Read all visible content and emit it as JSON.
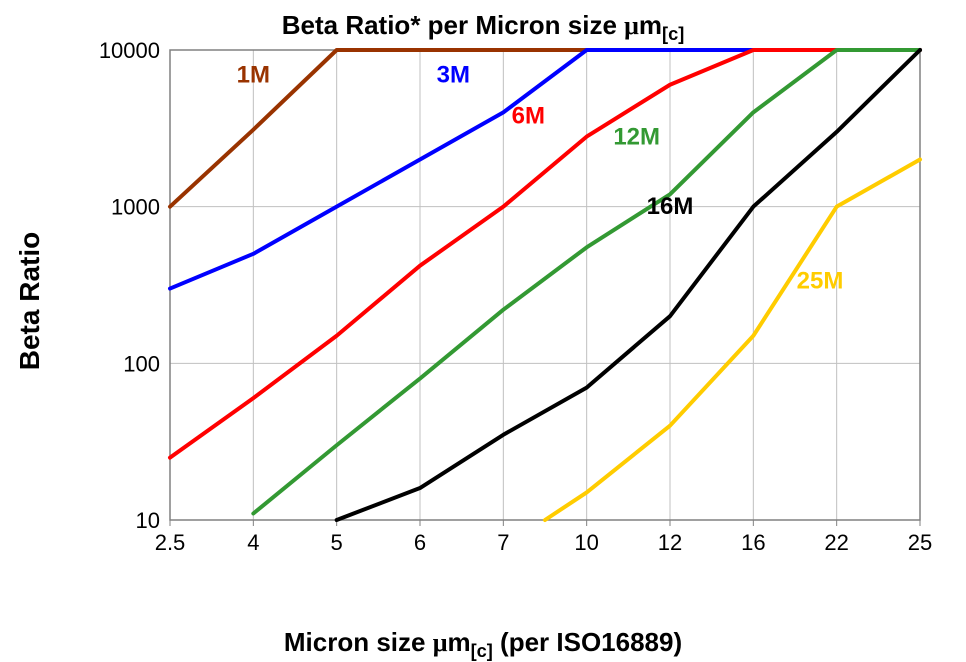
{
  "chart": {
    "type": "line",
    "title_prefix": "Beta Ratio* per Micron size ",
    "title_unit_prefix": "m",
    "title_subscript": "[c]",
    "title_fontsize": 26,
    "ylabel": "Beta Ratio",
    "ylabel_fontsize": 28,
    "xlabel_prefix": "Micron size ",
    "xlabel_unit_prefix": "m",
    "xlabel_subscript": "[c]",
    "xlabel_suffix": " (per ISO16889)",
    "xlabel_fontsize": 26,
    "background_color": "#ffffff",
    "grid_color": "#c0c0c0",
    "axis_color": "#808080",
    "tick_fontsize": 22,
    "tick_color": "#000000",
    "x_categories": [
      "2.5",
      "4",
      "5",
      "6",
      "7",
      "10",
      "12",
      "16",
      "22",
      "25"
    ],
    "y_scale": "log",
    "y_min": 10,
    "y_max": 10000,
    "y_ticks": [
      10,
      100,
      1000,
      10000
    ],
    "y_tick_labels": [
      "10",
      "100",
      "1000",
      "10000"
    ],
    "line_width": 4,
    "series": [
      {
        "name": "1M",
        "color": "#993300",
        "label_x": 1.0,
        "label_y": 6200,
        "label_fontsize": 24,
        "points": [
          {
            "xi": 0,
            "y": 1000
          },
          {
            "xi": 1,
            "y": 3100
          },
          {
            "xi": 2,
            "y": 10000
          },
          {
            "xi": 9,
            "y": 10000
          }
        ]
      },
      {
        "name": "3M",
        "color": "#0000ff",
        "label_x": 3.4,
        "label_y": 6200,
        "label_fontsize": 24,
        "points": [
          {
            "xi": 0,
            "y": 300
          },
          {
            "xi": 1,
            "y": 500
          },
          {
            "xi": 2,
            "y": 1000
          },
          {
            "xi": 3,
            "y": 2000
          },
          {
            "xi": 4,
            "y": 4000
          },
          {
            "xi": 5,
            "y": 10000
          },
          {
            "xi": 9,
            "y": 10000
          }
        ]
      },
      {
        "name": "6M",
        "color": "#ff0000",
        "label_x": 4.3,
        "label_y": 3400,
        "label_fontsize": 24,
        "points": [
          {
            "xi": 0,
            "y": 25
          },
          {
            "xi": 1,
            "y": 60
          },
          {
            "xi": 2,
            "y": 150
          },
          {
            "xi": 3,
            "y": 420
          },
          {
            "xi": 4,
            "y": 1000
          },
          {
            "xi": 5,
            "y": 2800
          },
          {
            "xi": 6,
            "y": 6000
          },
          {
            "xi": 7,
            "y": 10000
          },
          {
            "xi": 9,
            "y": 10000
          }
        ]
      },
      {
        "name": "12M",
        "color": "#339933",
        "label_x": 5.6,
        "label_y": 2500,
        "label_fontsize": 24,
        "points": [
          {
            "xi": 1,
            "y": 11
          },
          {
            "xi": 2,
            "y": 30
          },
          {
            "xi": 3,
            "y": 80
          },
          {
            "xi": 4,
            "y": 220
          },
          {
            "xi": 5,
            "y": 550
          },
          {
            "xi": 6,
            "y": 1200
          },
          {
            "xi": 7,
            "y": 4000
          },
          {
            "xi": 8,
            "y": 10000
          },
          {
            "xi": 9,
            "y": 10000
          }
        ]
      },
      {
        "name": "16M",
        "color": "#000000",
        "label_x": 6.0,
        "label_y": 900,
        "label_fontsize": 24,
        "points": [
          {
            "xi": 2,
            "y": 10
          },
          {
            "xi": 3,
            "y": 16
          },
          {
            "xi": 4,
            "y": 35
          },
          {
            "xi": 5,
            "y": 70
          },
          {
            "xi": 6,
            "y": 200
          },
          {
            "xi": 7,
            "y": 1000
          },
          {
            "xi": 8,
            "y": 3000
          },
          {
            "xi": 9,
            "y": 10000
          }
        ]
      },
      {
        "name": "25M",
        "color": "#ffcc00",
        "label_x": 7.8,
        "label_y": 300,
        "label_fontsize": 24,
        "points": [
          {
            "xi": 4.5,
            "y": 10
          },
          {
            "xi": 5,
            "y": 15
          },
          {
            "xi": 6,
            "y": 40
          },
          {
            "xi": 7,
            "y": 150
          },
          {
            "xi": 8,
            "y": 1000
          },
          {
            "xi": 9,
            "y": 2000
          }
        ]
      }
    ]
  }
}
